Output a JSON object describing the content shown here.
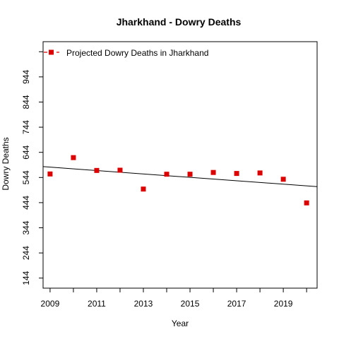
{
  "chart_data": {
    "type": "scatter",
    "title": "Jharkhand  -  Dowry Deaths",
    "xlabel": "Year",
    "ylabel": "Dowry Deaths",
    "x": [
      2009,
      2010,
      2011,
      2012,
      2013,
      2014,
      2015,
      2016,
      2017,
      2018,
      2019,
      2020
    ],
    "series": [
      {
        "name": "Projected Dowry Deaths  in  Jharkhand",
        "values": [
          558,
          623,
          572,
          573,
          498,
          557,
          557,
          564,
          560,
          562,
          537,
          443
        ],
        "color": "#dd0000",
        "marker": "square"
      }
    ],
    "trendline": {
      "x": [
        2008.7,
        2020.45
      ],
      "y": [
        587.2,
        507.6
      ],
      "color": "#000000"
    },
    "xticks": [
      "2009",
      "2011",
      "2013",
      "2015",
      "2017",
      "2019"
    ],
    "yticks": [
      "144",
      "244",
      "344",
      "444",
      "544",
      "644",
      "744",
      "844",
      "944"
    ],
    "xlim": [
      2008.7,
      2020.45
    ],
    "ylim": [
      104,
      1084
    ],
    "legend_position": "top-left",
    "grid": false
  }
}
